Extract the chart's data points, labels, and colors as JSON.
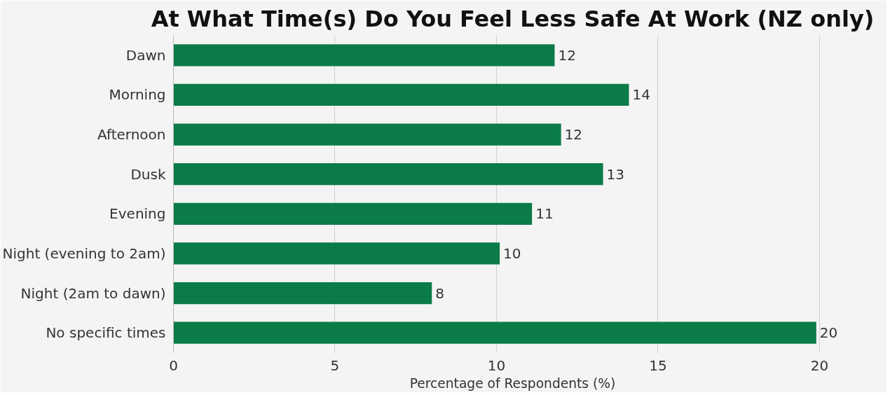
{
  "chart_data": {
    "type": "bar",
    "orientation": "horizontal",
    "title": "At What Time(s) Do You Feel Less Safe At Work (NZ only)",
    "xlabel": "Percentage of Respondents (%)",
    "categories": [
      "Dawn",
      "Morning",
      "Afternoon",
      "Dusk",
      "Evening",
      "Night (evening to 2am)",
      "Night (2am to dawn)",
      "No specific times"
    ],
    "values": [
      11.8,
      14.1,
      12.0,
      13.3,
      11.1,
      10.1,
      8.0,
      19.9
    ],
    "value_labels": [
      "12",
      "14",
      "12",
      "13",
      "11",
      "10",
      "8",
      "20"
    ],
    "color": "#0b7b47",
    "xlim": [
      0,
      21
    ],
    "xticks": [
      0,
      5,
      10,
      15,
      20
    ],
    "grid": "x"
  }
}
